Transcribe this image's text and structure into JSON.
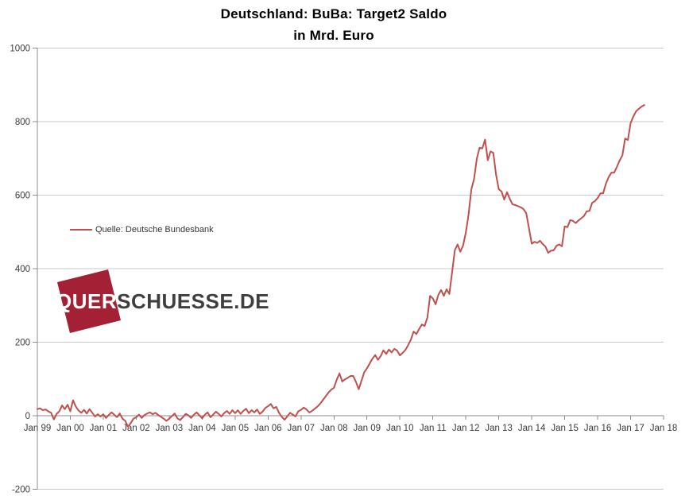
{
  "title": {
    "line1": "Deutschland: BuBa: Target2 Saldo",
    "line2": "in Mrd. Euro"
  },
  "legend": {
    "label": "Quelle: Deutsche Bundesbank"
  },
  "watermark": {
    "part1": "QUER",
    "part2": "SCHUESSE.DE"
  },
  "colors": {
    "series_line": "#c0504d",
    "gridline": "#c9c9c9",
    "axis_line": "#8c8c8c",
    "label_text": "#3a3a3a",
    "logo_square": "#a32035",
    "logo_text_dark": "#3f3f3f"
  },
  "chart_data": {
    "type": "line",
    "title": "Deutschland: BuBa: Target2 Saldo",
    "subtitle": "in Mrd. Euro",
    "legend_entries": [
      "Quelle: Deutsche Bundesbank"
    ],
    "legend_position": "inside-left",
    "grid": true,
    "frequency": "monthly",
    "x_start": "1999-01",
    "x_end": "2017-06",
    "x_axis_span_months": 228,
    "x_tick_labels": [
      "Jan 99",
      "Jan 00",
      "Jan 01",
      "Jan 02",
      "Jan 03",
      "Jan 04",
      "Jan 05",
      "Jan 06",
      "Jan 07",
      "Jan 08",
      "Jan 09",
      "Jan 10",
      "Jan 11",
      "Jan 12",
      "Jan 13",
      "Jan 14",
      "Jan 15",
      "Jan 16",
      "Jan 17",
      "Jan 18"
    ],
    "x_tick_interval_months": 12,
    "ylim": [
      -200,
      1000
    ],
    "y_ticks": [
      1000,
      800,
      600,
      400,
      200,
      0,
      -200
    ],
    "ylabel": "",
    "xlabel": "",
    "values": [
      18,
      20,
      15,
      17,
      12,
      8,
      -10,
      5,
      12,
      28,
      18,
      30,
      12,
      42,
      25,
      14,
      8,
      16,
      6,
      18,
      8,
      -2,
      4,
      -2,
      4,
      -6,
      2,
      9,
      3,
      -4,
      6,
      -8,
      -14,
      -30,
      -20,
      -8,
      -4,
      3,
      -6,
      2,
      6,
      9,
      4,
      8,
      2,
      -3,
      -8,
      -14,
      -8,
      -1,
      6,
      -7,
      -12,
      -4,
      5,
      1,
      -6,
      3,
      9,
      1,
      -7,
      3,
      9,
      -4,
      3,
      11,
      5,
      -2,
      7,
      13,
      5,
      15,
      7,
      15,
      5,
      13,
      19,
      7,
      15,
      9,
      17,
      5,
      11,
      21,
      26,
      32,
      20,
      24,
      8,
      -3,
      -11,
      -2,
      8,
      3,
      -2,
      12,
      16,
      22,
      17,
      9,
      13,
      19,
      25,
      33,
      43,
      53,
      63,
      71,
      76,
      98,
      115,
      93,
      99,
      103,
      108,
      108,
      92,
      72,
      95,
      118,
      129,
      142,
      155,
      165,
      152,
      162,
      178,
      168,
      180,
      172,
      182,
      177,
      164,
      171,
      179,
      192,
      207,
      229,
      222,
      236,
      248,
      244,
      267,
      326,
      319,
      303,
      329,
      342,
      326,
      344,
      331,
      390,
      450,
      466,
      446,
      463,
      498,
      547,
      615,
      644,
      699,
      729,
      727,
      751,
      695,
      719,
      715,
      656,
      616,
      610,
      588,
      608,
      590,
      575,
      573,
      570,
      567,
      562,
      551,
      510,
      468,
      473,
      470,
      476,
      467,
      460,
      443,
      449,
      450,
      462,
      466,
      461,
      515,
      513,
      532,
      530,
      524,
      531,
      537,
      543,
      556,
      557,
      579,
      584,
      592,
      605,
      605,
      631,
      649,
      661,
      661,
      677,
      694,
      708,
      754,
      750,
      796,
      814,
      828,
      835,
      841,
      845
    ]
  }
}
